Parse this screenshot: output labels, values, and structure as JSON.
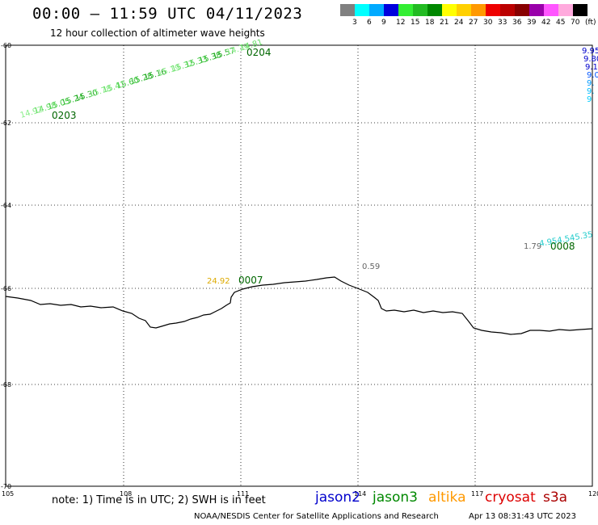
{
  "header": {
    "title": "00:00 – 11:59 UTC 04/11/2023",
    "subtitle": "12 hour collection of altimeter wave heights"
  },
  "legend": {
    "colors": [
      "#808080",
      "#00ffff",
      "#00aaff",
      "#0000dd",
      "#33ee33",
      "#22bb22",
      "#008800",
      "#ffff00",
      "#ffd000",
      "#ff9900",
      "#ee0000",
      "#bb0000",
      "#880000",
      "#9900aa",
      "#ff55ff",
      "#ffaadd",
      "#000000"
    ],
    "labels": [
      "3",
      "6",
      "9",
      "12",
      "15",
      "18",
      "21",
      "24",
      "27",
      "30",
      "33",
      "36",
      "39",
      "42",
      "45",
      "70",
      "(ft)"
    ]
  },
  "axes": {
    "x_ticks": [
      "105",
      "108",
      "111",
      "114",
      "117",
      "120"
    ],
    "y_ticks": [
      "-60",
      "-62",
      "-64",
      "-66",
      "-68",
      "-70"
    ]
  },
  "tracks": {
    "track1_values": [
      "14.92",
      "14.98",
      "15.05",
      "15.24",
      "15.30",
      "15.78",
      "15.41",
      "15.60",
      "15.28",
      "15.16",
      "15.19",
      "15.32",
      "15.33",
      "15.38",
      "15.57",
      "14.79",
      "14.81"
    ],
    "track1_start_time": "0203",
    "track1_end_time": "0204",
    "east_values": [
      "9.95",
      "9.80",
      "9.1",
      "9.0",
      "9.",
      "9.",
      "9"
    ],
    "point_24": "24.92",
    "time_0007": "0007",
    "point_059": "0.59",
    "point_179": "1.79",
    "east2_values": [
      "4.95",
      "4.54",
      "5.35"
    ],
    "time_0008": "0008"
  },
  "footer": {
    "note": "note:  1)  Time is in UTC;  2)  SWH is in feet",
    "satellites": [
      {
        "name": "jason2",
        "color": "#0000cc"
      },
      {
        "name": "jason3",
        "color": "#008800"
      },
      {
        "name": "altika",
        "color": "#ff9900"
      },
      {
        "name": "cryosat",
        "color": "#dd0000"
      },
      {
        "name": "s3a",
        "color": "#aa0000"
      }
    ],
    "credit": "NOAA/NESDIS Center for Satellite Applications and Research",
    "timestamp": "Apr 13 08:31:43 UTC 2023"
  }
}
